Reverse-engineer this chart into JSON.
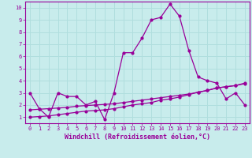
{
  "xlabel": "Windchill (Refroidissement éolien,°C)",
  "background_color": "#c8ecec",
  "line_color": "#990099",
  "grid_color": "#b0dede",
  "xlim": [
    -0.5,
    23.5
  ],
  "ylim": [
    0.5,
    10.5
  ],
  "yticks": [
    1,
    2,
    3,
    4,
    5,
    6,
    7,
    8,
    9,
    10
  ],
  "xticks": [
    0,
    1,
    2,
    3,
    4,
    5,
    6,
    7,
    8,
    9,
    10,
    11,
    12,
    13,
    14,
    15,
    16,
    17,
    18,
    19,
    20,
    21,
    22,
    23
  ],
  "series1_x": [
    0,
    1,
    2,
    3,
    4,
    5,
    6,
    7,
    8,
    9,
    10,
    11,
    12,
    13,
    14,
    15,
    16,
    17,
    18,
    19,
    20,
    21,
    22,
    23
  ],
  "series1_y": [
    3.0,
    1.7,
    1.0,
    3.0,
    2.7,
    2.7,
    2.0,
    2.3,
    0.8,
    3.0,
    6.3,
    6.3,
    7.5,
    9.0,
    9.2,
    10.3,
    9.3,
    6.5,
    4.3,
    4.0,
    3.8,
    2.5,
    3.0,
    2.0
  ],
  "series2_x": [
    0,
    1,
    2,
    3,
    4,
    5,
    6,
    7,
    8,
    9,
    10,
    11,
    12,
    13,
    14,
    15,
    16,
    17,
    18,
    19,
    20,
    21,
    22,
    23
  ],
  "series2_y": [
    1.0,
    1.05,
    1.1,
    1.2,
    1.3,
    1.4,
    1.5,
    1.55,
    1.6,
    1.7,
    1.85,
    2.0,
    2.1,
    2.2,
    2.4,
    2.5,
    2.65,
    2.85,
    3.05,
    3.2,
    3.4,
    3.5,
    3.6,
    3.75
  ],
  "series3_x": [
    0,
    1,
    2,
    3,
    4,
    5,
    6,
    7,
    8,
    9,
    10,
    11,
    12,
    13,
    14,
    15,
    16,
    17,
    18,
    19,
    20,
    21,
    22,
    23
  ],
  "series3_y": [
    1.6,
    1.65,
    1.7,
    1.75,
    1.8,
    1.9,
    1.95,
    2.0,
    2.05,
    2.1,
    2.2,
    2.3,
    2.4,
    2.5,
    2.6,
    2.7,
    2.8,
    2.9,
    3.05,
    3.2,
    3.4,
    3.5,
    3.6,
    3.8
  ],
  "tick_fontsize": 5.0,
  "xlabel_fontsize": 6.0
}
